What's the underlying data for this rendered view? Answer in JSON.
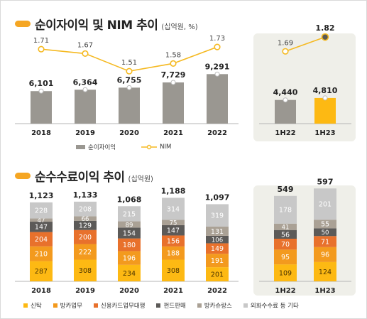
{
  "section1": {
    "title": "순이자이익 및 NIM 추이",
    "unit": "(십억원, %)"
  },
  "section2": {
    "title": "순수수료이익 추이",
    "unit": "(십억원)"
  },
  "colors": {
    "bar_gray": "#9a9791",
    "bar_highlight": "#fdb913",
    "nim_line": "#f5b921",
    "panel": "#efefe9",
    "title_mark": "#f5a623",
    "fee": [
      "#fdb913",
      "#f39a1e",
      "#e8712c",
      "#5c5a58",
      "#aaa195",
      "#c8c8c8"
    ]
  },
  "chart_data": [
    {
      "type": "bar",
      "subtype": "bar_with_line",
      "categories": [
        "2018",
        "2019",
        "2020",
        "2021",
        "2022"
      ],
      "series": [
        {
          "name": "순이자이익",
          "values": [
            6101,
            6364,
            6755,
            7729,
            9291
          ]
        },
        {
          "name": "NIM",
          "values": [
            1.71,
            1.67,
            1.51,
            1.58,
            1.73
          ]
        }
      ],
      "value_labels": [
        "6,101",
        "6,364",
        "6,755",
        "7,729",
        "9,291"
      ],
      "nim_labels": [
        "1.71",
        "1.67",
        "1.51",
        "1.58",
        "1.73"
      ],
      "legend": [
        "순이자이익",
        "NIM"
      ]
    },
    {
      "type": "bar",
      "subtype": "bar_with_line",
      "categories": [
        "1H22",
        "1H23"
      ],
      "series": [
        {
          "name": "순이자이익",
          "values": [
            4440,
            4810
          ]
        },
        {
          "name": "NIM",
          "values": [
            1.69,
            1.82
          ]
        }
      ],
      "value_labels": [
        "4,440",
        "4,810"
      ],
      "nim_labels": [
        "1.69",
        "1.82"
      ]
    },
    {
      "type": "bar",
      "subtype": "stacked",
      "categories": [
        "2018",
        "2019",
        "2020",
        "2021",
        "2022"
      ],
      "series": [
        {
          "name": "신탁",
          "values": [
            287,
            308,
            234,
            308,
            201
          ]
        },
        {
          "name": "방카업무",
          "values": [
            210,
            222,
            196,
            188,
            191
          ]
        },
        {
          "name": "신용카드업무대행",
          "values": [
            204,
            200,
            180,
            156,
            149
          ]
        },
        {
          "name": "펀드판매",
          "values": [
            147,
            129,
            154,
            147,
            106
          ]
        },
        {
          "name": "방카슈랑스",
          "values": [
            47,
            66,
            89,
            75,
            131
          ]
        },
        {
          "name": "외화수수료 등 기타",
          "values": [
            228,
            208,
            215,
            314,
            319
          ]
        }
      ],
      "totals": [
        1123,
        1133,
        1068,
        1188,
        1097
      ],
      "total_labels": [
        "1,123",
        "1,133",
        "1,068",
        "1,188",
        "1,097"
      ],
      "legend": [
        "신탁",
        "방카업무",
        "신용카드업무대행",
        "펀드판매",
        "방카슈랑스",
        "외화수수료 등 기타"
      ]
    },
    {
      "type": "bar",
      "subtype": "stacked",
      "categories": [
        "1H22",
        "1H23"
      ],
      "series": [
        {
          "name": "신탁",
          "values": [
            109,
            124
          ]
        },
        {
          "name": "방카업무",
          "values": [
            95,
            96
          ]
        },
        {
          "name": "신용카드업무대행",
          "values": [
            70,
            71
          ]
        },
        {
          "name": "펀드판매",
          "values": [
            56,
            50
          ]
        },
        {
          "name": "방카슈랑스",
          "values": [
            41,
            55
          ]
        },
        {
          "name": "외화수수료 등 기타",
          "values": [
            178,
            201
          ]
        }
      ],
      "totals": [
        549,
        597
      ],
      "total_labels": [
        "549",
        "597"
      ]
    }
  ]
}
